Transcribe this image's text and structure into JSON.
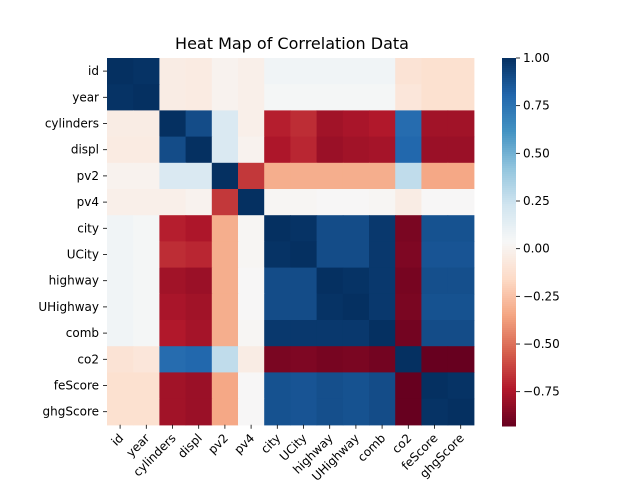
{
  "chart_data": {
    "type": "heatmap",
    "title": "Heat Map of Correlation Data",
    "row_labels": [
      "id",
      "year",
      "cylinders",
      "displ",
      "pv2",
      "pv4",
      "city",
      "UCity",
      "highway",
      "UHighway",
      "comb",
      "co2",
      "feScore",
      "ghgScore"
    ],
    "col_labels": [
      "id",
      "year",
      "cylinders",
      "displ",
      "pv2",
      "pv4",
      "city",
      "UCity",
      "highway",
      "UHighway",
      "comb",
      "co2",
      "feScore",
      "ghgScore"
    ],
    "matrix": [
      [
        1.0,
        0.99,
        -0.04,
        -0.05,
        0.0,
        -0.02,
        0.07,
        0.07,
        0.07,
        0.07,
        0.07,
        -0.1,
        -0.12,
        -0.12
      ],
      [
        0.99,
        1.0,
        -0.04,
        -0.05,
        0.0,
        -0.02,
        0.05,
        0.05,
        0.05,
        0.05,
        0.05,
        -0.08,
        -0.12,
        -0.12
      ],
      [
        -0.04,
        -0.04,
        1.0,
        0.9,
        0.18,
        -0.02,
        -0.72,
        -0.68,
        -0.78,
        -0.76,
        -0.74,
        0.78,
        -0.78,
        -0.78
      ],
      [
        -0.05,
        -0.05,
        0.9,
        1.0,
        0.18,
        0.0,
        -0.75,
        -0.7,
        -0.8,
        -0.78,
        -0.77,
        0.8,
        -0.8,
        -0.8
      ],
      [
        0.0,
        0.0,
        0.18,
        0.18,
        1.0,
        -0.65,
        -0.32,
        -0.32,
        -0.32,
        -0.32,
        -0.32,
        0.28,
        -0.34,
        -0.34
      ],
      [
        -0.02,
        -0.02,
        -0.02,
        0.0,
        -0.65,
        1.0,
        0.02,
        0.02,
        0.03,
        0.03,
        0.02,
        -0.04,
        0.03,
        0.03
      ],
      [
        0.07,
        0.05,
        -0.72,
        -0.75,
        -0.32,
        0.02,
        1.0,
        0.99,
        0.9,
        0.9,
        0.97,
        -0.88,
        0.88,
        0.88
      ],
      [
        0.07,
        0.05,
        -0.68,
        -0.7,
        -0.32,
        0.02,
        0.99,
        1.0,
        0.9,
        0.9,
        0.97,
        -0.87,
        0.87,
        0.87
      ],
      [
        0.07,
        0.05,
        -0.78,
        -0.8,
        -0.32,
        0.03,
        0.9,
        0.9,
        1.0,
        0.99,
        0.97,
        -0.89,
        0.89,
        0.89
      ],
      [
        0.07,
        0.05,
        -0.76,
        -0.78,
        -0.32,
        0.03,
        0.9,
        0.9,
        0.99,
        1.0,
        0.97,
        -0.88,
        0.88,
        0.88
      ],
      [
        0.07,
        0.05,
        -0.74,
        -0.77,
        -0.32,
        0.02,
        0.97,
        0.97,
        0.97,
        0.97,
        1.0,
        -0.9,
        0.9,
        0.9
      ],
      [
        -0.1,
        -0.08,
        0.78,
        0.8,
        0.28,
        -0.04,
        -0.88,
        -0.87,
        -0.89,
        -0.88,
        -0.9,
        1.0,
        -0.93,
        -0.93
      ],
      [
        -0.12,
        -0.12,
        -0.78,
        -0.8,
        -0.34,
        0.03,
        0.88,
        0.87,
        0.89,
        0.88,
        0.9,
        -0.93,
        1.0,
        0.99
      ],
      [
        -0.12,
        -0.12,
        -0.78,
        -0.8,
        -0.34,
        0.03,
        0.88,
        0.87,
        0.89,
        0.88,
        0.9,
        -0.93,
        0.99,
        1.0
      ]
    ],
    "colorbar": {
      "range": [
        -0.93,
        1.0
      ],
      "ticks": [
        1.0,
        0.75,
        0.5,
        0.25,
        0.0,
        -0.25,
        -0.5,
        -0.75
      ],
      "tick_labels": [
        "1.00",
        "0.75",
        "0.50",
        "0.25",
        "0.00",
        "−0.25",
        "−0.50",
        "−0.75"
      ],
      "colormap": "RdBu",
      "placement": "right"
    },
    "grid": false
  }
}
